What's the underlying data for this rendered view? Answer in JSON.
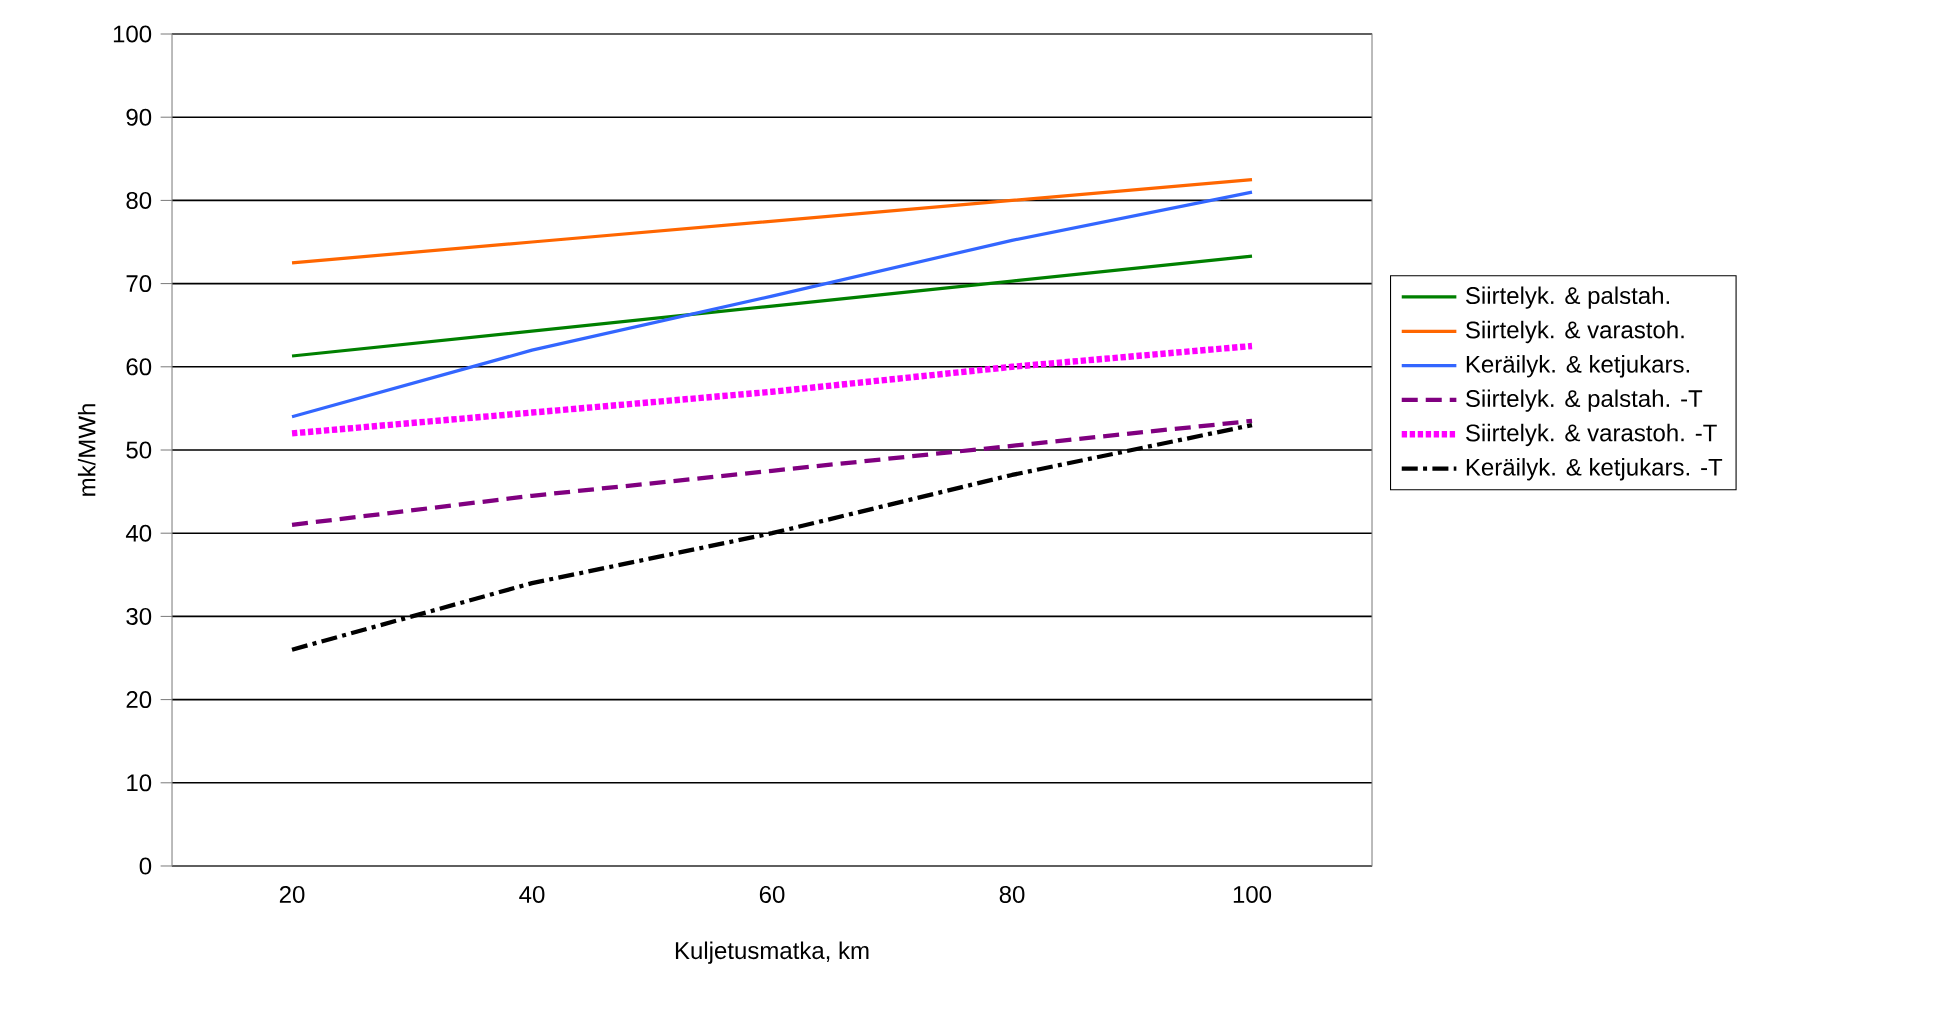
{
  "chart_data": {
    "type": "line",
    "xlabel": "Kuljetusmatka, km",
    "ylabel": "mk/MWh",
    "categories": [
      "20",
      "40",
      "60",
      "80",
      "100"
    ],
    "ylim": [
      0,
      100
    ],
    "yticks": [
      0,
      10,
      20,
      30,
      40,
      50,
      60,
      70,
      80,
      90,
      100
    ],
    "grid": "y",
    "legend": "right",
    "marker": "none",
    "series": [
      {
        "name": "Siirtelyk. & palstah.",
        "color": "#008000",
        "line_style": "solid",
        "values": [
          61.3,
          64.3,
          67.3,
          70.3,
          73.3
        ]
      },
      {
        "name": "Siirtelyk. & varastoh.",
        "color": "#ff6600",
        "line_style": "solid",
        "values": [
          72.5,
          75,
          77.5,
          80,
          82.5
        ]
      },
      {
        "name": "Keräilyk. & ketjukars.",
        "color": "#3366ff",
        "line_style": "solid",
        "values": [
          54,
          62,
          68.5,
          75.2,
          81
        ]
      },
      {
        "name": "Siirtelyk. & palstah. -T",
        "color": "#800080",
        "line_style": "dashed",
        "values": [
          41,
          44.5,
          47.5,
          50.5,
          53.5
        ]
      },
      {
        "name": "Siirtelyk. & varastoh. -T",
        "color": "#ff00ff",
        "line_style": "dotted",
        "values": [
          52,
          54.5,
          57,
          60,
          62.5
        ]
      },
      {
        "name": "Keräilyk. & ketjukars. -T",
        "color": "#000000",
        "line_style": "dashdot",
        "values": [
          26,
          34,
          40,
          47,
          53
        ]
      }
    ]
  }
}
